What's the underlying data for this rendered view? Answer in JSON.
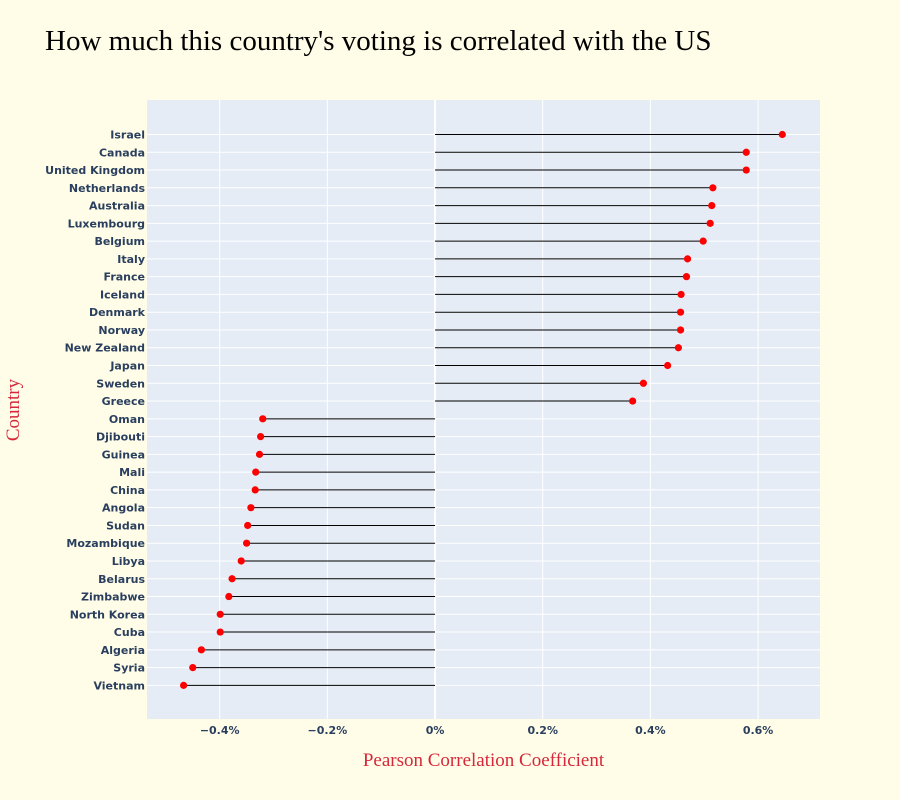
{
  "chart_data": {
    "type": "lollipop",
    "title": "How much this country's voting is correlated with the US",
    "xlabel": "Pearson Correlation Coefficient",
    "ylabel": "Country",
    "xlim": [
      -0.535,
      0.715
    ],
    "xticks": [
      {
        "value": -0.4,
        "label": "−0.4%"
      },
      {
        "value": -0.2,
        "label": "−0.2%"
      },
      {
        "value": 0,
        "label": "0%"
      },
      {
        "value": 0.2,
        "label": "0.2%"
      },
      {
        "value": 0.4,
        "label": "0.4%"
      },
      {
        "value": 0.6,
        "label": "0.6%"
      }
    ],
    "grid": true,
    "categories": [
      "Israel",
      "Canada",
      "United Kingdom",
      "Netherlands",
      "Australia",
      "Luxembourg",
      "Belgium",
      "Italy",
      "France",
      "Iceland",
      "Denmark",
      "Norway",
      "New Zealand",
      "Japan",
      "Sweden",
      "Greece",
      "Oman",
      "Djibouti",
      "Guinea",
      "Mali",
      "China",
      "Angola",
      "Sudan",
      "Mozambique",
      "Libya",
      "Belarus",
      "Zimbabwe",
      "North Korea",
      "Cuba",
      "Algeria",
      "Syria",
      "Vietnam"
    ],
    "values": [
      0.645,
      0.578,
      0.578,
      0.516,
      0.514,
      0.511,
      0.498,
      0.469,
      0.467,
      0.457,
      0.456,
      0.456,
      0.452,
      0.432,
      0.387,
      0.367,
      -0.32,
      -0.324,
      -0.326,
      -0.333,
      -0.334,
      -0.342,
      -0.348,
      -0.35,
      -0.36,
      -0.377,
      -0.383,
      -0.399,
      -0.399,
      -0.434,
      -0.45,
      -0.467
    ]
  },
  "colors": {
    "page_background": "#fffde7",
    "plot_background": "#e5ecf6",
    "grid": "#ffffff",
    "stem": "#000000",
    "marker": "#ff0000",
    "tick_text": "#2a3f5f",
    "axis_title": "#d6273b",
    "title": "#000000"
  }
}
